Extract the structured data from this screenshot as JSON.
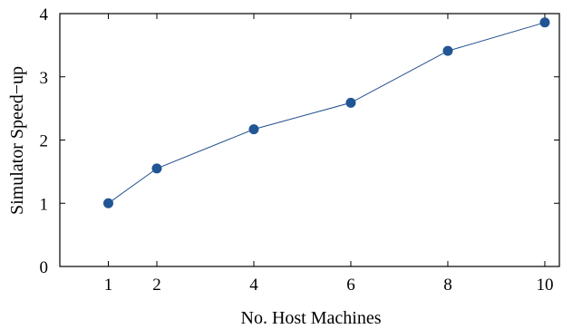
{
  "chart_data": {
    "type": "line",
    "xlabel": "No. Host Machines",
    "ylabel": "Simulator Speed−up",
    "xlim": [
      0,
      10.3
    ],
    "ylim": [
      0,
      4
    ],
    "xticks": [
      1,
      2,
      4,
      6,
      8,
      10
    ],
    "yticks": [
      0,
      1,
      2,
      3,
      4
    ],
    "grid": false,
    "legend": "none",
    "line_color": "#1f4e8c",
    "marker_color": "#215594",
    "series": [
      {
        "x": [
          1,
          2,
          4,
          6,
          8,
          10
        ],
        "y": [
          1.0,
          1.55,
          2.17,
          2.59,
          3.41,
          3.86
        ]
      }
    ]
  }
}
